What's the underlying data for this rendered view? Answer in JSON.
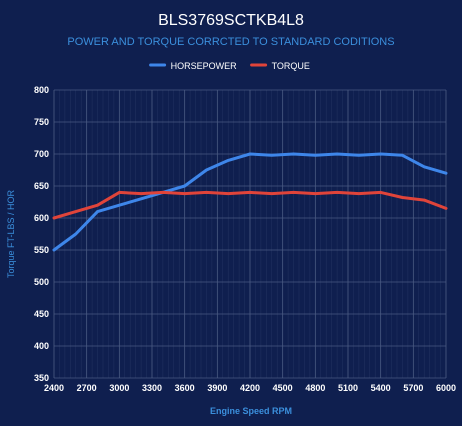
{
  "colors": {
    "background": "#0f1f4f",
    "title": "#ffffff",
    "subtitle": "#3b8fdc",
    "axis_label": "#3b8fdc",
    "tick_label": "#ffffff",
    "grid": "#4a5a82",
    "horsepower": "#3e86ea",
    "torque": "#e0443a"
  },
  "chart_data": {
    "type": "line",
    "title": "BLS3769SCTKB4L8",
    "subtitle": "POWER AND TORQUE CORRCTED TO STANDARD CODITIONS",
    "xlabel": "Engine Speed RPM",
    "ylabel": "Torque FT-LBS / HOR",
    "legend_position": "top-center",
    "grid": true,
    "xlim": [
      2400,
      6000
    ],
    "ylim": [
      350,
      800
    ],
    "x_ticks": [
      2400,
      2700,
      3000,
      3300,
      3600,
      3900,
      4200,
      4500,
      4800,
      5100,
      5400,
      5700,
      6000
    ],
    "y_ticks": [
      350,
      400,
      450,
      500,
      550,
      600,
      650,
      700,
      750,
      800
    ],
    "x": [
      2400,
      2600,
      2800,
      3000,
      3200,
      3400,
      3600,
      3800,
      4000,
      4200,
      4400,
      4600,
      4800,
      5000,
      5200,
      5400,
      5600,
      5800,
      6000
    ],
    "series": [
      {
        "name": "HORSEPOWER",
        "color": "#3e86ea",
        "values": [
          550,
          575,
          610,
          620,
          630,
          640,
          650,
          675,
          690,
          700,
          698,
          700,
          698,
          700,
          698,
          700,
          698,
          680,
          670
        ]
      },
      {
        "name": "TORQUE",
        "color": "#e0443a",
        "values": [
          600,
          610,
          620,
          640,
          638,
          640,
          638,
          640,
          638,
          640,
          638,
          640,
          638,
          640,
          638,
          640,
          632,
          628,
          615
        ]
      }
    ]
  }
}
